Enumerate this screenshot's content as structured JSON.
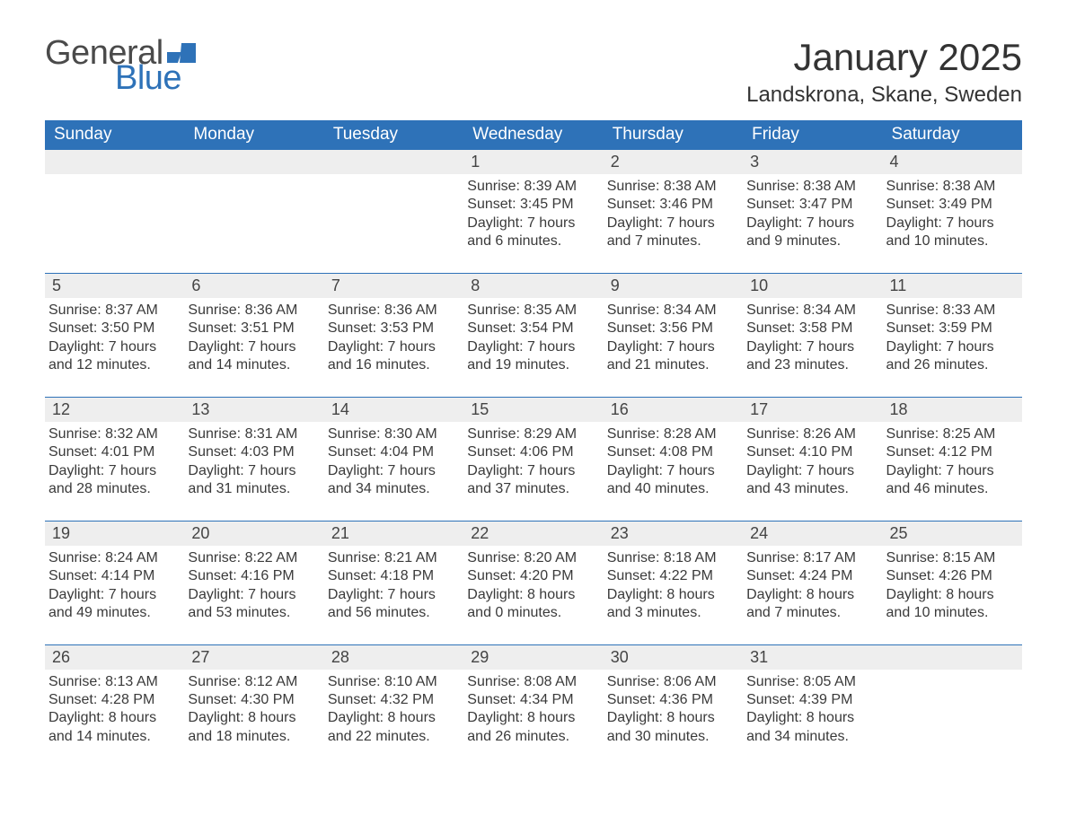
{
  "brand": {
    "word1": "General",
    "word2": "Blue"
  },
  "title": "January 2025",
  "location": "Landskrona, Skane, Sweden",
  "colors": {
    "header_bg": "#2e72b8",
    "header_text": "#ffffff",
    "band_bg": "#eeeeee",
    "text": "#3a3a3a",
    "logo_gray": "#4a4a4a",
    "logo_blue": "#2e72b8",
    "page_bg": "#ffffff"
  },
  "dow": [
    "Sunday",
    "Monday",
    "Tuesday",
    "Wednesday",
    "Thursday",
    "Friday",
    "Saturday"
  ],
  "labels": {
    "sunrise": "Sunrise: ",
    "sunset": "Sunset: ",
    "daylight": "Daylight: ",
    "and": "and ",
    "hours": " hours",
    "minutes": " minutes."
  },
  "weeks": [
    [
      null,
      null,
      null,
      {
        "n": "1",
        "sr": "8:39 AM",
        "ss": "3:45 PM",
        "dh": "7",
        "dm": "6"
      },
      {
        "n": "2",
        "sr": "8:38 AM",
        "ss": "3:46 PM",
        "dh": "7",
        "dm": "7"
      },
      {
        "n": "3",
        "sr": "8:38 AM",
        "ss": "3:47 PM",
        "dh": "7",
        "dm": "9"
      },
      {
        "n": "4",
        "sr": "8:38 AM",
        "ss": "3:49 PM",
        "dh": "7",
        "dm": "10"
      }
    ],
    [
      {
        "n": "5",
        "sr": "8:37 AM",
        "ss": "3:50 PM",
        "dh": "7",
        "dm": "12"
      },
      {
        "n": "6",
        "sr": "8:36 AM",
        "ss": "3:51 PM",
        "dh": "7",
        "dm": "14"
      },
      {
        "n": "7",
        "sr": "8:36 AM",
        "ss": "3:53 PM",
        "dh": "7",
        "dm": "16"
      },
      {
        "n": "8",
        "sr": "8:35 AM",
        "ss": "3:54 PM",
        "dh": "7",
        "dm": "19"
      },
      {
        "n": "9",
        "sr": "8:34 AM",
        "ss": "3:56 PM",
        "dh": "7",
        "dm": "21"
      },
      {
        "n": "10",
        "sr": "8:34 AM",
        "ss": "3:58 PM",
        "dh": "7",
        "dm": "23"
      },
      {
        "n": "11",
        "sr": "8:33 AM",
        "ss": "3:59 PM",
        "dh": "7",
        "dm": "26"
      }
    ],
    [
      {
        "n": "12",
        "sr": "8:32 AM",
        "ss": "4:01 PM",
        "dh": "7",
        "dm": "28"
      },
      {
        "n": "13",
        "sr": "8:31 AM",
        "ss": "4:03 PM",
        "dh": "7",
        "dm": "31"
      },
      {
        "n": "14",
        "sr": "8:30 AM",
        "ss": "4:04 PM",
        "dh": "7",
        "dm": "34"
      },
      {
        "n": "15",
        "sr": "8:29 AM",
        "ss": "4:06 PM",
        "dh": "7",
        "dm": "37"
      },
      {
        "n": "16",
        "sr": "8:28 AM",
        "ss": "4:08 PM",
        "dh": "7",
        "dm": "40"
      },
      {
        "n": "17",
        "sr": "8:26 AM",
        "ss": "4:10 PM",
        "dh": "7",
        "dm": "43"
      },
      {
        "n": "18",
        "sr": "8:25 AM",
        "ss": "4:12 PM",
        "dh": "7",
        "dm": "46"
      }
    ],
    [
      {
        "n": "19",
        "sr": "8:24 AM",
        "ss": "4:14 PM",
        "dh": "7",
        "dm": "49"
      },
      {
        "n": "20",
        "sr": "8:22 AM",
        "ss": "4:16 PM",
        "dh": "7",
        "dm": "53"
      },
      {
        "n": "21",
        "sr": "8:21 AM",
        "ss": "4:18 PM",
        "dh": "7",
        "dm": "56"
      },
      {
        "n": "22",
        "sr": "8:20 AM",
        "ss": "4:20 PM",
        "dh": "8",
        "dm": "0"
      },
      {
        "n": "23",
        "sr": "8:18 AM",
        "ss": "4:22 PM",
        "dh": "8",
        "dm": "3"
      },
      {
        "n": "24",
        "sr": "8:17 AM",
        "ss": "4:24 PM",
        "dh": "8",
        "dm": "7"
      },
      {
        "n": "25",
        "sr": "8:15 AM",
        "ss": "4:26 PM",
        "dh": "8",
        "dm": "10"
      }
    ],
    [
      {
        "n": "26",
        "sr": "8:13 AM",
        "ss": "4:28 PM",
        "dh": "8",
        "dm": "14"
      },
      {
        "n": "27",
        "sr": "8:12 AM",
        "ss": "4:30 PM",
        "dh": "8",
        "dm": "18"
      },
      {
        "n": "28",
        "sr": "8:10 AM",
        "ss": "4:32 PM",
        "dh": "8",
        "dm": "22"
      },
      {
        "n": "29",
        "sr": "8:08 AM",
        "ss": "4:34 PM",
        "dh": "8",
        "dm": "26"
      },
      {
        "n": "30",
        "sr": "8:06 AM",
        "ss": "4:36 PM",
        "dh": "8",
        "dm": "30"
      },
      {
        "n": "31",
        "sr": "8:05 AM",
        "ss": "4:39 PM",
        "dh": "8",
        "dm": "34"
      },
      null
    ]
  ]
}
